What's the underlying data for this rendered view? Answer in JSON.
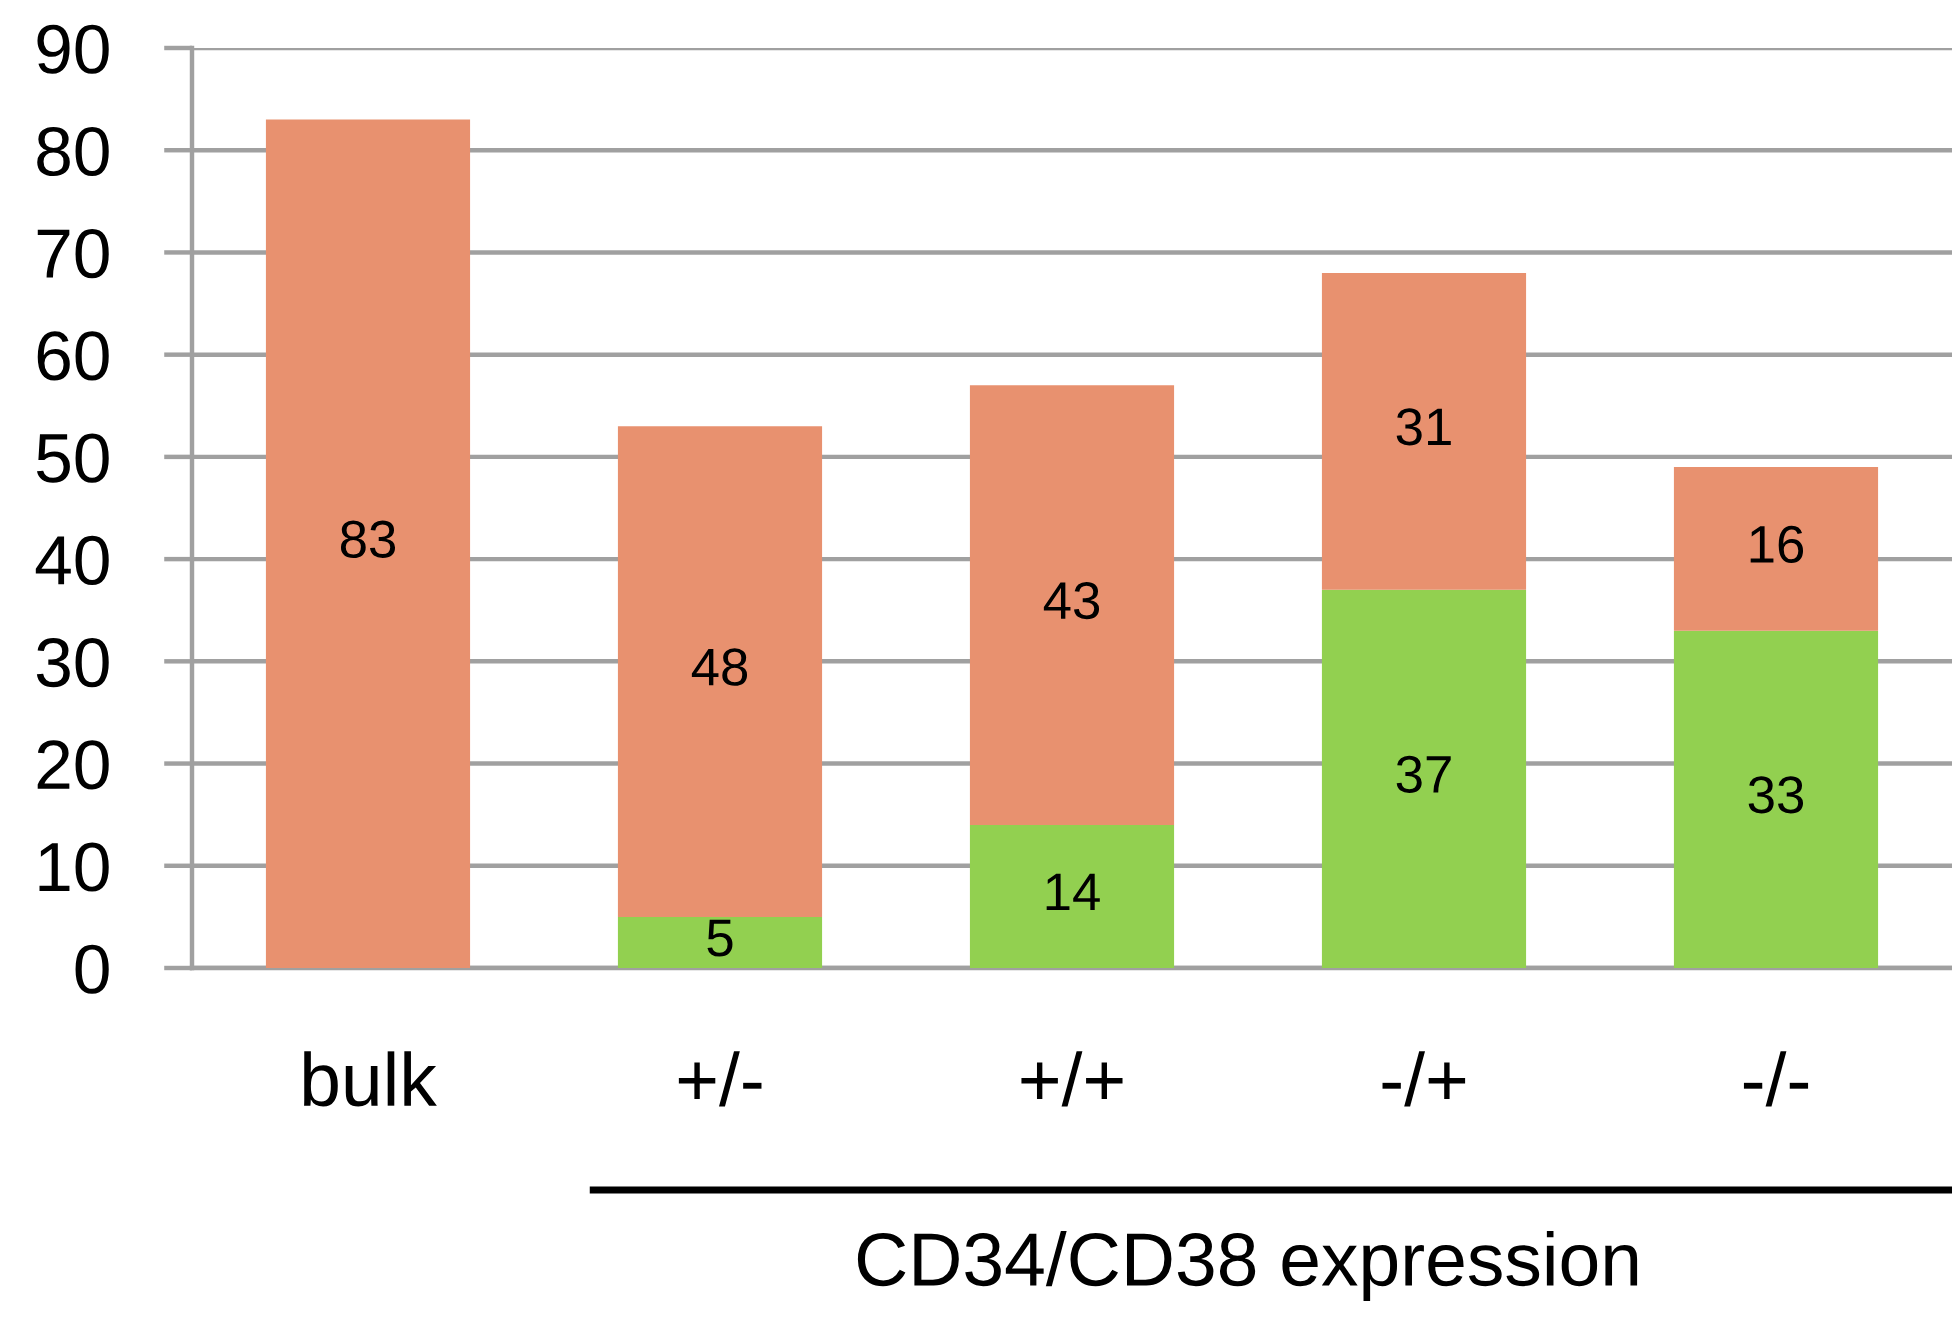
{
  "chart_data": {
    "type": "bar",
    "stacked": true,
    "xlabel": "CD34/CD38 expression",
    "categories": [
      "bulk",
      "+/-",
      "+/+",
      "-/+",
      "-/-"
    ],
    "series": [
      {
        "color": "#92d050",
        "values": [
          null,
          5,
          14,
          37,
          33
        ]
      },
      {
        "color": "#e8916f",
        "values": [
          83,
          48,
          43,
          31,
          16
        ]
      }
    ],
    "ylim": [
      0,
      90
    ],
    "yticks": [
      0,
      10,
      20,
      30,
      40,
      50,
      60,
      70,
      80,
      90
    ],
    "grid": "y",
    "data_labels": true
  }
}
